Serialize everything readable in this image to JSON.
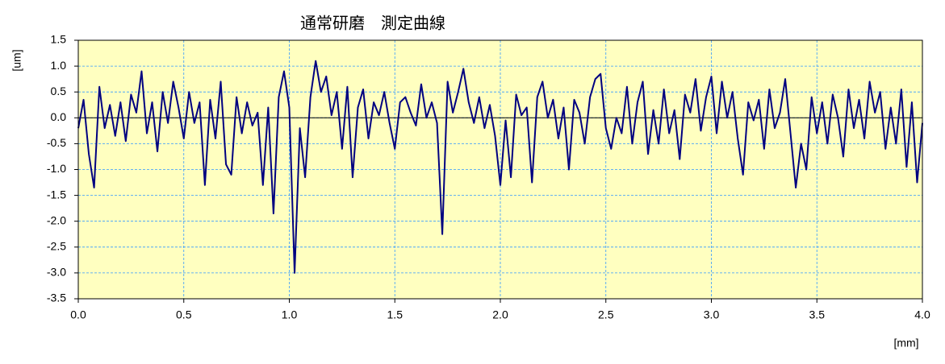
{
  "chart_data": {
    "type": "line",
    "title": "通常研磨　測定曲線",
    "ylabel": "[um]",
    "xlabel": "[mm]",
    "plot_background": "#ffffc0",
    "grid": true,
    "grid_color": "#3399ff",
    "xlim": [
      0,
      4
    ],
    "ylim": [
      -3.5,
      1.5
    ],
    "xticks": [
      {
        "value": 0,
        "label": "0.0"
      },
      0.5,
      {
        "value": 1,
        "label": "1.0"
      },
      1.5,
      {
        "value": 2,
        "label": "2.0"
      },
      2.5,
      {
        "value": 3,
        "label": "3.0"
      },
      3.5,
      {
        "value": 4,
        "label": "4.0"
      }
    ],
    "yticks": [
      -3.5,
      {
        "value": -3,
        "label": "-3.0"
      },
      -2.5,
      {
        "value": -2,
        "label": "-2.0"
      },
      -1.5,
      {
        "value": -1,
        "label": "-1.0"
      },
      -0.5,
      {
        "value": 0,
        "label": "0.0"
      },
      0.5,
      {
        "value": 1,
        "label": "1.0"
      },
      1.5
    ],
    "x": [
      0,
      0.025,
      0.05,
      0.075,
      0.1,
      0.125,
      0.15,
      0.175,
      0.2,
      0.225,
      0.25,
      0.275,
      0.3,
      0.325,
      0.35,
      0.375,
      0.4,
      0.425,
      0.45,
      0.475,
      0.5,
      0.525,
      0.55,
      0.575,
      0.6,
      0.625,
      0.65,
      0.675,
      0.7,
      0.725,
      0.75,
      0.775,
      0.8,
      0.825,
      0.85,
      0.875,
      0.9,
      0.925,
      0.95,
      0.975,
      1.0,
      1.025,
      1.05,
      1.075,
      1.1,
      1.125,
      1.15,
      1.175,
      1.2,
      1.225,
      1.25,
      1.275,
      1.3,
      1.325,
      1.35,
      1.375,
      1.4,
      1.425,
      1.45,
      1.475,
      1.5,
      1.525,
      1.55,
      1.575,
      1.6,
      1.625,
      1.65,
      1.675,
      1.7,
      1.725,
      1.75,
      1.775,
      1.8,
      1.825,
      1.85,
      1.875,
      1.9,
      1.925,
      1.95,
      1.975,
      2.0,
      2.025,
      2.05,
      2.075,
      2.1,
      2.125,
      2.15,
      2.175,
      2.2,
      2.225,
      2.25,
      2.275,
      2.3,
      2.325,
      2.35,
      2.375,
      2.4,
      2.425,
      2.45,
      2.475,
      2.5,
      2.525,
      2.55,
      2.575,
      2.6,
      2.625,
      2.65,
      2.675,
      2.7,
      2.725,
      2.75,
      2.775,
      2.8,
      2.825,
      2.85,
      2.875,
      2.9,
      2.925,
      2.95,
      2.975,
      3.0,
      3.025,
      3.05,
      3.075,
      3.1,
      3.125,
      3.15,
      3.175,
      3.2,
      3.225,
      3.25,
      3.275,
      3.3,
      3.325,
      3.35,
      3.375,
      3.4,
      3.425,
      3.45,
      3.475,
      3.5,
      3.525,
      3.55,
      3.575,
      3.6,
      3.625,
      3.65,
      3.675,
      3.7,
      3.725,
      3.75,
      3.775,
      3.8,
      3.825,
      3.85,
      3.875,
      3.9,
      3.925,
      3.95,
      3.975,
      4.0
    ],
    "series": [
      {
        "color": "#000080",
        "values": [
          -0.2,
          0.35,
          -0.7,
          -1.35,
          0.6,
          -0.2,
          0.25,
          -0.35,
          0.3,
          -0.45,
          0.45,
          0.1,
          0.9,
          -0.3,
          0.3,
          -0.65,
          0.5,
          -0.1,
          0.7,
          0.2,
          -0.4,
          0.5,
          -0.1,
          0.3,
          -1.3,
          0.35,
          -0.4,
          0.7,
          -0.9,
          -1.1,
          0.4,
          -0.3,
          0.3,
          -0.15,
          0.1,
          -1.3,
          0.2,
          -1.85,
          0.4,
          0.9,
          0.2,
          -3.0,
          -0.2,
          -1.15,
          0.4,
          1.1,
          0.5,
          0.8,
          0.05,
          0.5,
          -0.6,
          0.6,
          -1.15,
          0.2,
          0.55,
          -0.4,
          0.3,
          0.05,
          0.5,
          -0.1,
          -0.6,
          0.3,
          0.4,
          0.1,
          -0.15,
          0.65,
          0.0,
          0.3,
          -0.1,
          -2.25,
          0.7,
          0.1,
          0.5,
          0.95,
          0.3,
          -0.1,
          0.4,
          -0.2,
          0.25,
          -0.35,
          -1.3,
          -0.05,
          -1.15,
          0.45,
          0.05,
          0.2,
          -1.25,
          0.4,
          0.7,
          0.0,
          0.35,
          -0.4,
          0.2,
          -1.0,
          0.35,
          0.1,
          -0.5,
          0.4,
          0.75,
          0.85,
          -0.2,
          -0.6,
          0.0,
          -0.3,
          0.6,
          -0.5,
          0.3,
          0.7,
          -0.7,
          0.15,
          -0.5,
          0.55,
          -0.3,
          0.15,
          -0.8,
          0.45,
          0.1,
          0.75,
          -0.25,
          0.4,
          0.8,
          -0.3,
          0.7,
          0.0,
          0.5,
          -0.4,
          -1.1,
          0.3,
          -0.05,
          0.35,
          -0.6,
          0.55,
          -0.2,
          0.1,
          0.75,
          -0.3,
          -1.35,
          -0.5,
          -1.0,
          0.4,
          -0.3,
          0.3,
          -0.5,
          0.45,
          0.0,
          -0.75,
          0.55,
          -0.2,
          0.35,
          -0.4,
          0.7,
          0.1,
          0.5,
          -0.6,
          0.2,
          -0.5,
          0.55,
          -0.95,
          0.3,
          -1.25,
          -0.1
        ]
      }
    ]
  }
}
